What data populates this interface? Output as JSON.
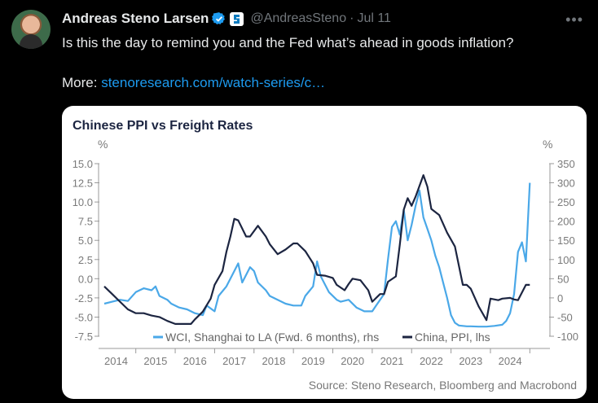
{
  "tweet": {
    "display_name": "Andreas Steno Larsen",
    "handle": "@AndreasSteno",
    "separator": "·",
    "date": "Jul 11",
    "more_icon": "ellipsis-icon",
    "text": "Is this the day to remind you and the Fed what’s ahead in goods inflation?",
    "more_label": "More:",
    "link_text": "stenoresearch.com/watch-series/c…",
    "colors": {
      "link": "#1d9bf0",
      "verified": "#1d9bf0",
      "background": "#000000"
    }
  },
  "chart_data": {
    "type": "line",
    "title": "Chinese PPI vs Freight Rates",
    "left_unit": "%",
    "right_unit": "%",
    "y_left": {
      "range": [
        -7.5,
        15.0
      ],
      "ticks": [
        "15.0",
        "12.5",
        "10.0",
        "7.5",
        "5.0",
        "2.5",
        "0.0",
        "-2.5",
        "-5.0",
        "-7.5"
      ]
    },
    "y_right": {
      "range": [
        -100,
        350
      ],
      "ticks": [
        "350",
        "300",
        "250",
        "200",
        "150",
        "100",
        "50",
        "0",
        "-50",
        "-100"
      ]
    },
    "x_ticks": [
      "2014",
      "2015",
      "2016",
      "2017",
      "2018",
      "2019",
      "2020",
      "2021",
      "2022",
      "2023",
      "2024"
    ],
    "legend_position": "bottom",
    "source": "Source: Steno Research, Bloomberg and Macrobond",
    "series": [
      {
        "name": "WCI, Shanghai to LA (Fwd. 6 months), rhs",
        "axis": "right",
        "color": "#4aa8e8",
        "x": [
          2013.7,
          2013.9,
          2014.1,
          2014.3,
          2014.5,
          2014.7,
          2014.9,
          2015.0,
          2015.1,
          2015.3,
          2015.4,
          2015.6,
          2015.8,
          2016.0,
          2016.2,
          2016.3,
          2016.5,
          2016.6,
          2016.8,
          2016.9,
          2017.1,
          2017.2,
          2017.4,
          2017.5,
          2017.6,
          2017.8,
          2017.9,
          2018.1,
          2018.3,
          2018.5,
          2018.7,
          2018.8,
          2019.0,
          2019.1,
          2019.2,
          2019.4,
          2019.6,
          2019.7,
          2019.9,
          2020.1,
          2020.3,
          2020.5,
          2020.6,
          2020.8,
          2020.9,
          2021.0,
          2021.1,
          2021.2,
          2021.3,
          2021.4,
          2021.5,
          2021.6,
          2021.7,
          2021.8,
          2021.9,
          2022.0,
          2022.1,
          2022.2,
          2022.3,
          2022.4,
          2022.5,
          2022.6,
          2022.7,
          2022.8,
          2022.9,
          2023.0,
          2023.2,
          2023.4,
          2023.6,
          2023.8,
          2023.9,
          2024.0,
          2024.1,
          2024.2,
          2024.3,
          2024.4,
          2024.5
        ],
        "y": [
          -15,
          -10,
          -5,
          -8,
          15,
          25,
          20,
          30,
          5,
          -5,
          -15,
          -25,
          -30,
          -40,
          -45,
          -20,
          -35,
          5,
          30,
          50,
          90,
          40,
          80,
          70,
          40,
          20,
          5,
          -5,
          -15,
          -20,
          -20,
          5,
          30,
          95,
          55,
          15,
          -5,
          -10,
          -5,
          -25,
          -35,
          -35,
          -20,
          10,
          100,
          185,
          200,
          165,
          230,
          150,
          190,
          240,
          280,
          210,
          180,
          150,
          110,
          80,
          40,
          0,
          -45,
          -65,
          -72,
          -73,
          -74,
          -74,
          -75,
          -75,
          -73,
          -70,
          -60,
          -40,
          10,
          120,
          145,
          95,
          300
        ]
      },
      {
        "name": "China, PPI, lhs",
        "axis": "left",
        "color": "#1c2541",
        "x": [
          2013.7,
          2013.9,
          2014.1,
          2014.3,
          2014.5,
          2014.7,
          2014.9,
          2015.1,
          2015.3,
          2015.5,
          2015.7,
          2015.9,
          2016.0,
          2016.2,
          2016.4,
          2016.5,
          2016.7,
          2016.8,
          2016.9,
          2017.0,
          2017.1,
          2017.3,
          2017.4,
          2017.6,
          2017.8,
          2017.9,
          2018.1,
          2018.3,
          2018.5,
          2018.6,
          2018.8,
          2019.0,
          2019.1,
          2019.3,
          2019.5,
          2019.6,
          2019.8,
          2019.9,
          2020.0,
          2020.2,
          2020.4,
          2020.5,
          2020.7,
          2020.8,
          2020.9,
          2021.1,
          2021.2,
          2021.3,
          2021.4,
          2021.5,
          2021.6,
          2021.8,
          2021.9,
          2022.0,
          2022.2,
          2022.4,
          2022.6,
          2022.8,
          2022.9,
          2023.0,
          2023.2,
          2023.4,
          2023.5,
          2023.7,
          2023.8,
          2024.0,
          2024.1,
          2024.2,
          2024.4,
          2024.5
        ],
        "y": [
          -1.0,
          -2.0,
          -3.0,
          -4.0,
          -4.5,
          -4.5,
          -4.8,
          -5.0,
          -5.5,
          -5.9,
          -5.9,
          -5.9,
          -5.3,
          -4.3,
          -2.6,
          -0.8,
          1.0,
          3.5,
          5.5,
          7.8,
          7.6,
          5.5,
          5.5,
          6.9,
          5.5,
          4.5,
          3.2,
          3.8,
          4.6,
          4.6,
          3.6,
          2.0,
          0.5,
          0.4,
          0.1,
          -0.8,
          -1.5,
          -0.7,
          0.0,
          -0.2,
          -1.5,
          -3.0,
          -2.0,
          -2.0,
          -0.4,
          0.3,
          4.4,
          9.0,
          10.5,
          9.5,
          10.7,
          13.5,
          12.0,
          9.1,
          8.3,
          6.0,
          4.2,
          -0.8,
          -0.8,
          -1.3,
          -3.6,
          -5.4,
          -2.6,
          -2.8,
          -2.6,
          -2.5,
          -2.7,
          -2.8,
          -0.8,
          -0.8
        ]
      }
    ]
  }
}
